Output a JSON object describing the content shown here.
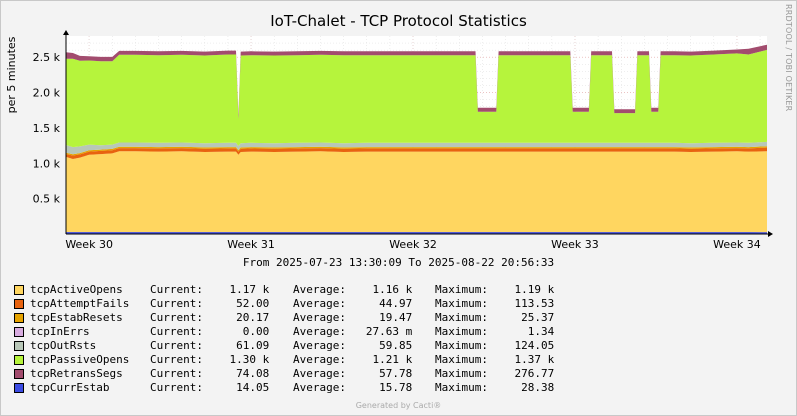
{
  "title": "IoT-Chalet - TCP Protocol Statistics",
  "watermark": "RRDTOOL / TOBI OETIKER",
  "date_range": "From 2025-07-23 13:30:09 To 2025-08-22 20:56:33",
  "footer": "Generated by Cacti®",
  "legend": {
    "current_label": "Current:",
    "average_label": "Average:",
    "maximum_label": "Maximum:",
    "rows": [
      {
        "name": "tcpActiveOpens",
        "color": "#FFD660",
        "current": "1.17 k",
        "average": "1.16 k",
        "maximum": "1.19 k"
      },
      {
        "name": "tcpAttemptFails",
        "color": "#E8630F",
        "current": "52.00",
        "average": "44.97",
        "maximum": "113.53"
      },
      {
        "name": "tcpEstabResets",
        "color": "#E6A300",
        "current": "20.17",
        "average": "19.47",
        "maximum": "25.37"
      },
      {
        "name": "tcpInErrs",
        "color": "#D8ACE0",
        "current": "0.00",
        "average": "27.63 m",
        "maximum": "1.34"
      },
      {
        "name": "tcpOutRsts",
        "color": "#B8C7B8",
        "current": "61.09",
        "average": "59.85",
        "maximum": "124.05"
      },
      {
        "name": "tcpPassiveOpens",
        "color": "#B6F43C",
        "current": "1.30 k",
        "average": "1.21 k",
        "maximum": "1.37 k"
      },
      {
        "name": "tcpRetransSegs",
        "color": "#A24C6E",
        "current": "74.08",
        "average": "57.78",
        "maximum": "276.77"
      },
      {
        "name": "tcpCurrEstab",
        "color": "#3B4BE3",
        "current": "14.05",
        "average": "15.78",
        "maximum": "28.38"
      }
    ]
  },
  "chart_data": {
    "type": "area",
    "title": "IoT-Chalet - TCP Protocol Statistics",
    "ylabel": "per 5 minutes",
    "ylim": [
      0,
      2800
    ],
    "yticks": [
      {
        "value": 500,
        "label": "0.5 k"
      },
      {
        "value": 1000,
        "label": "1.0 k"
      },
      {
        "value": 1500,
        "label": "1.5 k"
      },
      {
        "value": 2000,
        "label": "2.0 k"
      },
      {
        "value": 2500,
        "label": "2.5 k"
      }
    ],
    "xlim": [
      0,
      30.3
    ],
    "xticks": [
      {
        "value": 1.0,
        "label": "Week 30"
      },
      {
        "value": 8.0,
        "label": "Week 31"
      },
      {
        "value": 15.0,
        "label": "Week 32"
      },
      {
        "value": 22.0,
        "label": "Week 33"
      },
      {
        "value": 29.0,
        "label": "Week 34"
      }
    ],
    "x": [
      0,
      0.3,
      0.6,
      1.0,
      1.5,
      2.0,
      2.3,
      3.0,
      4.0,
      5.0,
      6.0,
      7.0,
      7.35,
      7.45,
      7.55,
      8.0,
      9.0,
      10.0,
      11.0,
      12.0,
      13.0,
      14.0,
      17.7,
      17.8,
      18.6,
      18.7,
      19.0,
      21.8,
      21.9,
      22.6,
      22.7,
      23.6,
      23.7,
      24.6,
      24.7,
      25.2,
      25.3,
      25.6,
      25.7,
      26.2,
      26.3,
      27.0,
      28.0,
      29.0,
      29.5,
      30.3
    ],
    "stack_order": [
      "tcpActiveOpens",
      "tcpAttemptFails",
      "tcpEstabResets",
      "tcpInErrs",
      "tcpOutRsts",
      "tcpPassiveOpens",
      "tcpRetransSegs"
    ],
    "series": [
      {
        "name": "tcpActiveOpens",
        "color": "#FFD660",
        "values": [
          1090,
          1060,
          1080,
          1120,
          1130,
          1140,
          1170,
          1170,
          1165,
          1170,
          1160,
          1165,
          1165,
          1120,
          1160,
          1165,
          1160,
          1165,
          1170,
          1160,
          1165,
          1165,
          1165,
          1165,
          1165,
          1165,
          1165,
          1165,
          1165,
          1165,
          1165,
          1165,
          1165,
          1165,
          1165,
          1165,
          1165,
          1165,
          1165,
          1165,
          1165,
          1160,
          1165,
          1170,
          1165,
          1170
        ]
      },
      {
        "name": "tcpAttemptFails",
        "color": "#E8630F",
        "values": [
          40,
          50,
          45,
          45,
          45,
          45,
          45,
          45,
          45,
          45,
          45,
          45,
          45,
          45,
          45,
          45,
          45,
          45,
          45,
          45,
          45,
          45,
          45,
          45,
          45,
          45,
          45,
          45,
          45,
          45,
          45,
          45,
          45,
          45,
          45,
          45,
          45,
          45,
          45,
          45,
          45,
          45,
          45,
          45,
          45,
          52
        ]
      },
      {
        "name": "tcpEstabResets",
        "color": "#E6A300",
        "values": [
          19,
          19,
          19,
          19,
          19,
          19,
          19,
          19,
          19,
          19,
          19,
          19,
          19,
          19,
          19,
          19,
          19,
          19,
          19,
          19,
          19,
          19,
          19,
          19,
          19,
          19,
          19,
          19,
          19,
          19,
          19,
          19,
          19,
          19,
          19,
          19,
          19,
          19,
          19,
          19,
          19,
          19,
          19,
          19,
          19,
          20
        ]
      },
      {
        "name": "tcpInErrs",
        "color": "#D8ACE0",
        "values": [
          0,
          0,
          0,
          0,
          0,
          0,
          0,
          0,
          0,
          0,
          0,
          0,
          0,
          0,
          0,
          0,
          0,
          0,
          0,
          0,
          0,
          0,
          0,
          0,
          0,
          0,
          0,
          0,
          0,
          0,
          0,
          0,
          0,
          0,
          0,
          0,
          0,
          0,
          0,
          0,
          0,
          0,
          0,
          0,
          0,
          0
        ]
      },
      {
        "name": "tcpOutRsts",
        "color": "#B8C7B8",
        "values": [
          110,
          100,
          95,
          80,
          60,
          60,
          60,
          60,
          60,
          60,
          60,
          60,
          60,
          60,
          60,
          60,
          60,
          60,
          60,
          60,
          60,
          60,
          60,
          60,
          60,
          60,
          60,
          60,
          60,
          60,
          60,
          60,
          60,
          60,
          60,
          60,
          60,
          60,
          60,
          60,
          60,
          60,
          60,
          60,
          60,
          61
        ]
      },
      {
        "name": "tcpPassiveOpens",
        "color": "#B6F43C",
        "values": [
          1220,
          1250,
          1210,
          1190,
          1190,
          1180,
          1240,
          1240,
          1240,
          1240,
          1240,
          1250,
          1250,
          380,
          1240,
          1240,
          1240,
          1240,
          1240,
          1245,
          1240,
          1240,
          1240,
          440,
          440,
          1240,
          1240,
          1240,
          440,
          440,
          1240,
          1240,
          420,
          420,
          1240,
          1240,
          440,
          440,
          1240,
          1240,
          1240,
          1240,
          1250,
          1260,
          1250,
          1300
        ]
      },
      {
        "name": "tcpRetransSegs",
        "color": "#A24C6E",
        "values": [
          90,
          80,
          70,
          60,
          60,
          60,
          55,
          55,
          55,
          55,
          55,
          55,
          55,
          60,
          55,
          55,
          55,
          55,
          55,
          55,
          55,
          55,
          55,
          55,
          55,
          55,
          55,
          55,
          55,
          55,
          55,
          55,
          55,
          55,
          55,
          55,
          55,
          55,
          55,
          55,
          55,
          55,
          55,
          55,
          80,
          74
        ]
      },
      {
        "name": "tcpCurrEstab",
        "color": "#3B4BE3",
        "line": true,
        "values": [
          15,
          15,
          15,
          15,
          15,
          15,
          15,
          15,
          15,
          15,
          15,
          15,
          15,
          15,
          15,
          15,
          15,
          15,
          15,
          15,
          15,
          15,
          15,
          15,
          15,
          15,
          15,
          15,
          15,
          15,
          15,
          15,
          15,
          15,
          15,
          15,
          15,
          15,
          15,
          15,
          15,
          15,
          15,
          15,
          15,
          14
        ]
      }
    ],
    "grid": true,
    "legend_position": "bottom"
  }
}
